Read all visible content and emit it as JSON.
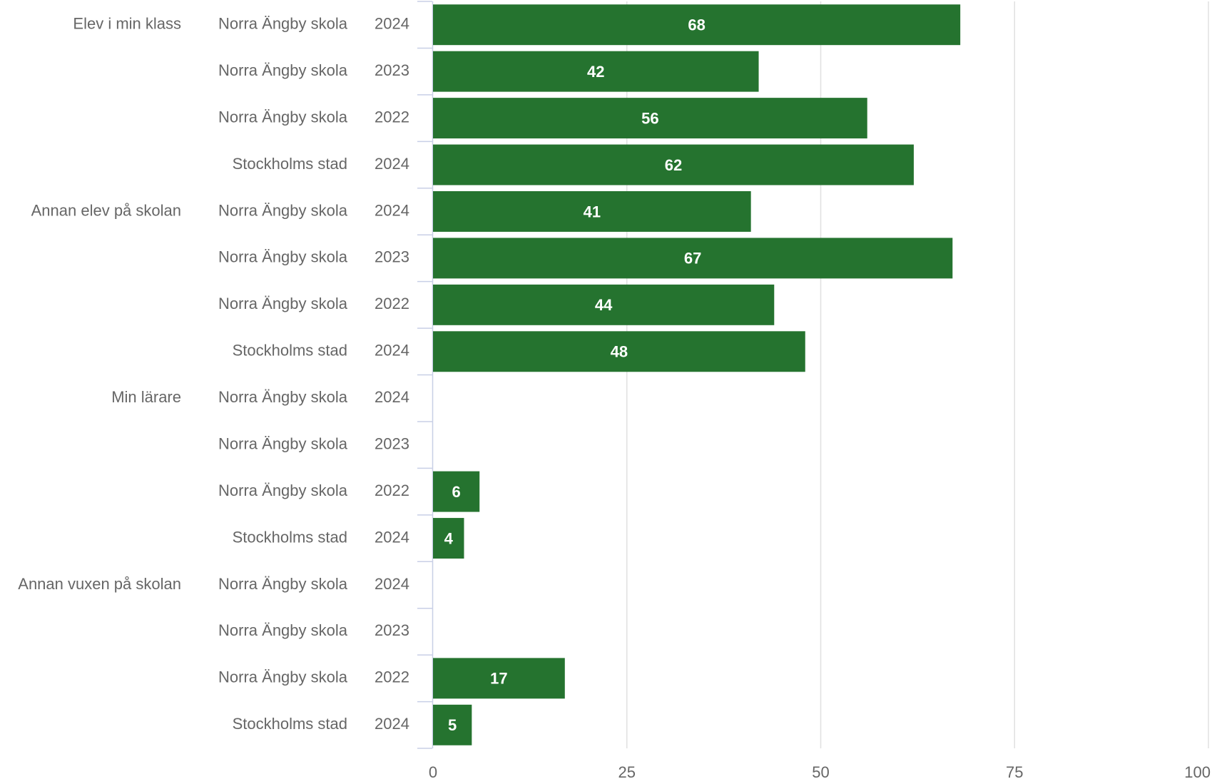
{
  "chart_data": {
    "type": "bar",
    "orientation": "horizontal",
    "groups": [
      "Elev i min klass",
      null,
      null,
      null,
      "Annan elev på skolan",
      null,
      null,
      null,
      "Min lärare",
      null,
      null,
      null,
      "Annan vuxen på skolan",
      null,
      null,
      null
    ],
    "schools": [
      "Norra Ängby skola",
      "Norra Ängby skola",
      "Norra Ängby skola",
      "Stockholms stad",
      "Norra Ängby skola",
      "Norra Ängby skola",
      "Norra Ängby skola",
      "Stockholms stad",
      "Norra Ängby skola",
      "Norra Ängby skola",
      "Norra Ängby skola",
      "Stockholms stad",
      "Norra Ängby skola",
      "Norra Ängby skola",
      "Norra Ängby skola",
      "Stockholms stad"
    ],
    "years": [
      2024,
      2023,
      2022,
      2024,
      2024,
      2023,
      2022,
      2024,
      2024,
      2023,
      2022,
      2024,
      2024,
      2023,
      2022,
      2024
    ],
    "values": [
      68,
      42,
      56,
      62,
      41,
      67,
      44,
      48,
      null,
      null,
      6,
      4,
      null,
      null,
      17,
      5
    ],
    "color": "#25732f",
    "xlim": [
      0,
      100
    ],
    "xticks": [
      0,
      25,
      50,
      75,
      100
    ],
    "grid": true
  }
}
